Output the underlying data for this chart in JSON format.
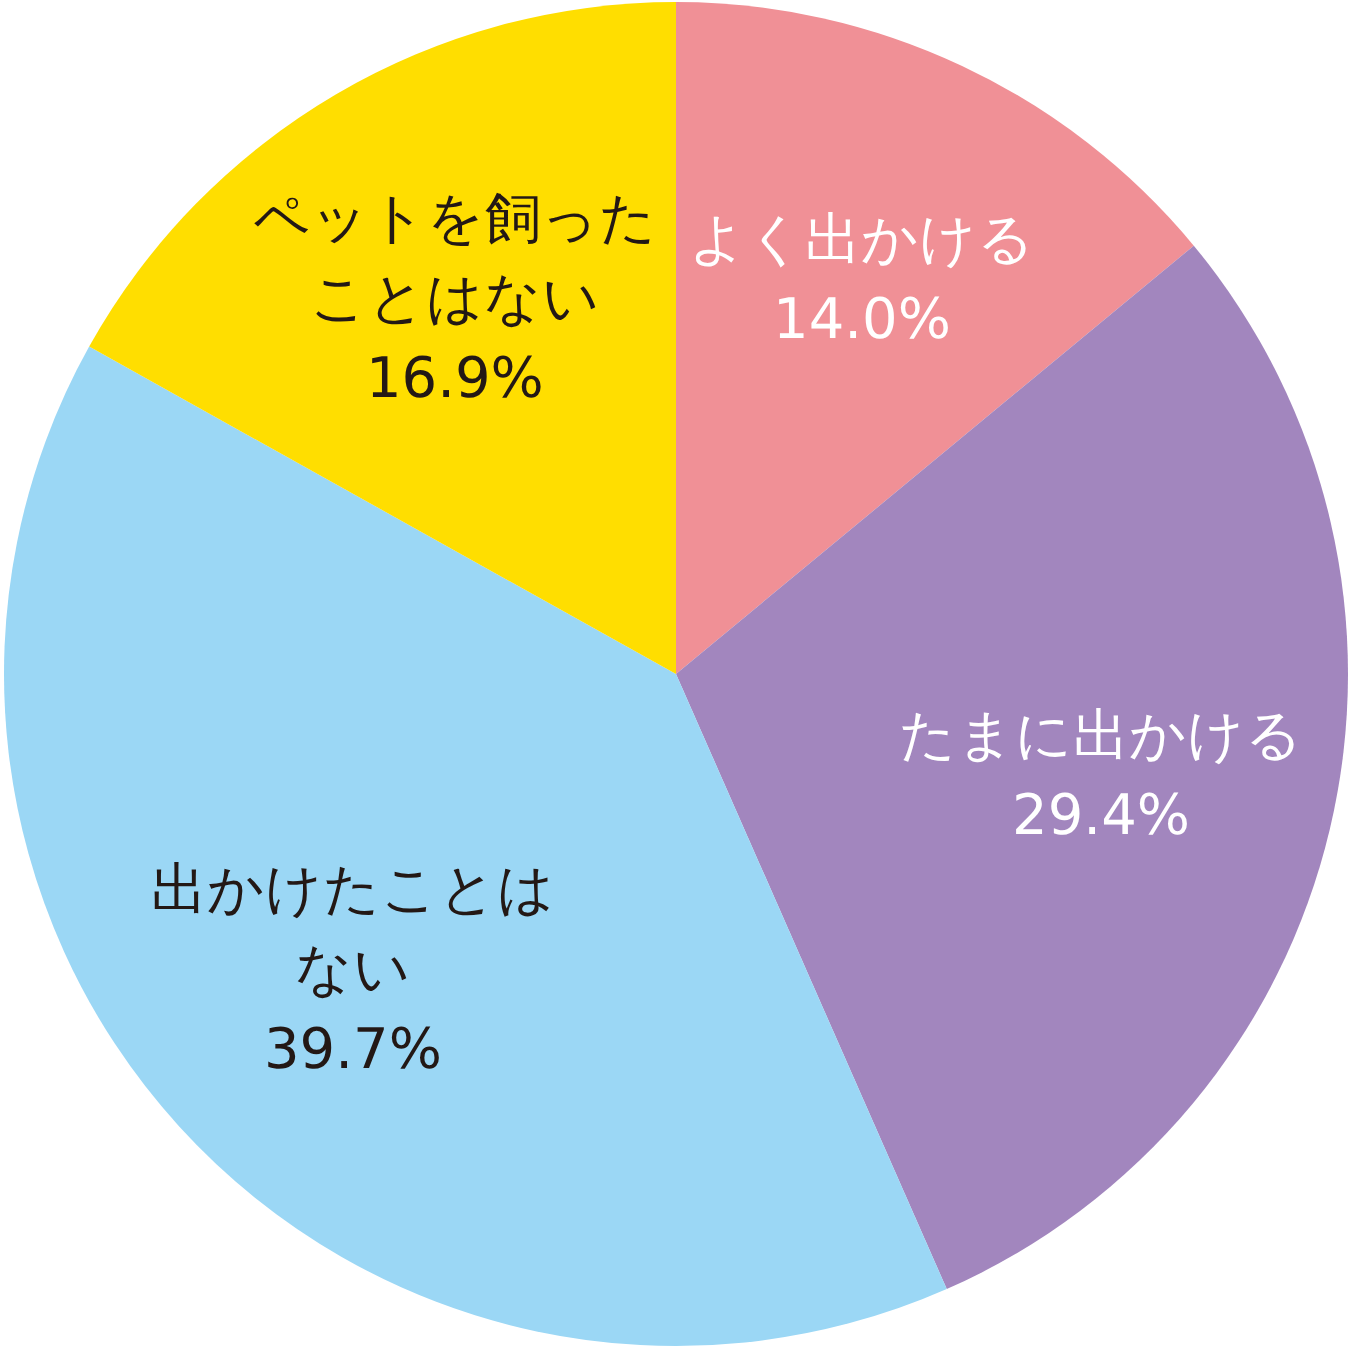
{
  "chart_data": {
    "type": "pie",
    "categories": [
      "よく出かける",
      "たまに出かける",
      "出かけたことはない",
      "ペットを飼ったことはない"
    ],
    "values": [
      14.0,
      29.4,
      39.7,
      16.9
    ],
    "value_labels": [
      "14.0%",
      "29.4%",
      "39.7%",
      "16.9%"
    ],
    "colors": [
      "#f09096",
      "#a286be",
      "#9bd7f5",
      "#ffde00"
    ]
  }
}
